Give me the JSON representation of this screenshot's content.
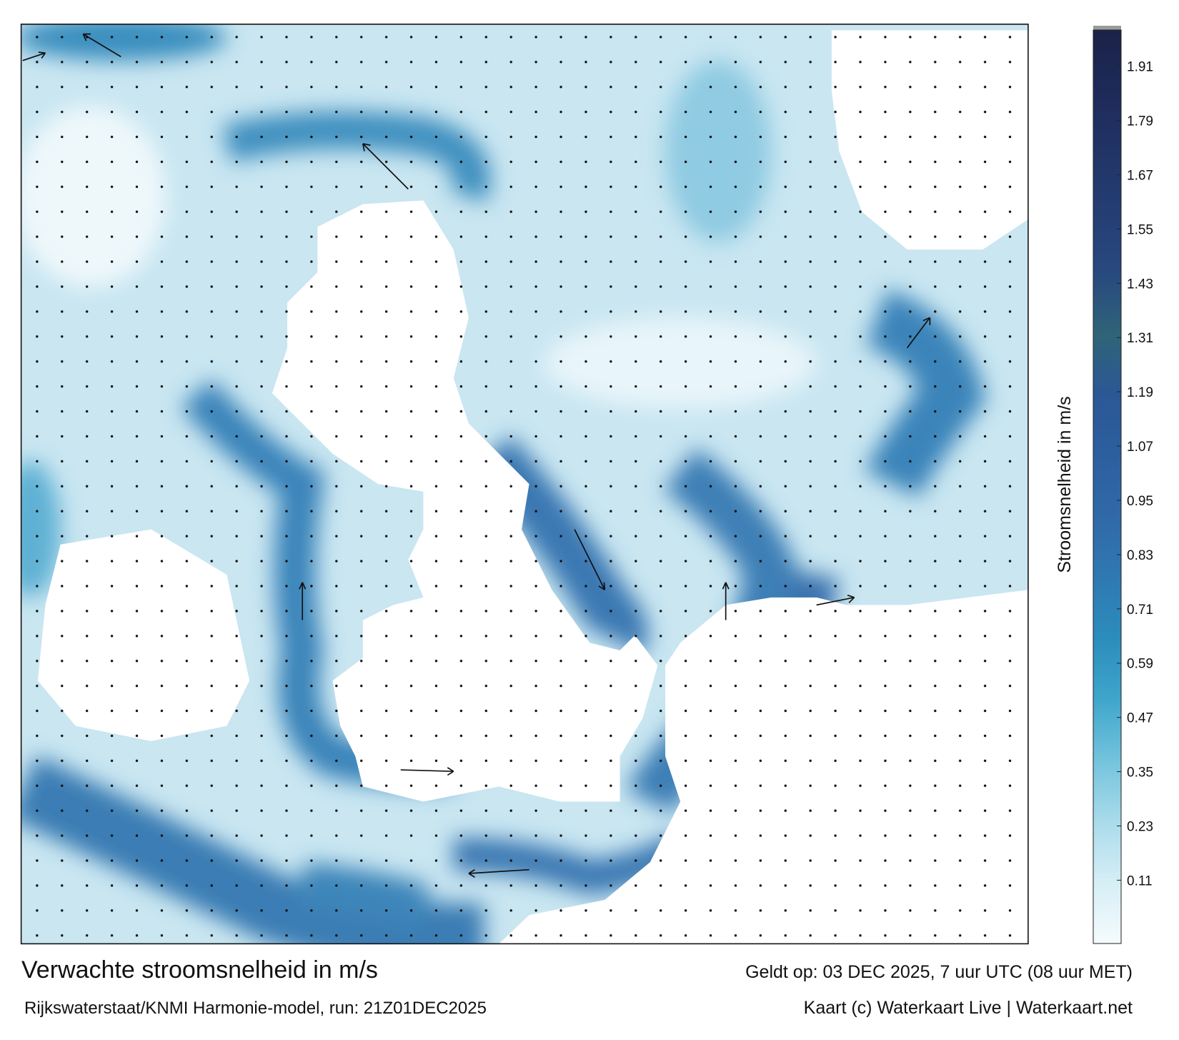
{
  "map": {
    "title": "Verwachte stroomsnelheid in m/s",
    "subtitle": "Rijkswaterstaat/KNMI Harmonie-model, run: 21Z01DEC2025",
    "valid_time": "Geldt op: 03 DEC 2025, 7 uur UTC (08 uur MET)",
    "credit": "Kaart (c) Waterkaart Live | Waterkaart.net",
    "colorbar": {
      "label": "Stroomsnelheid in m/s",
      "lim": [
        -0.03,
        1.99
      ],
      "ticks": [
        0.11,
        0.23,
        0.35,
        0.47,
        0.59,
        0.71,
        0.83,
        0.95,
        1.07,
        1.19,
        1.31,
        1.43,
        1.55,
        1.67,
        1.79,
        1.91
      ],
      "colors": [
        "#f5fbfd",
        "#d6eef6",
        "#a9dbeb",
        "#74c3dd",
        "#3fa6cb",
        "#2b8dbc",
        "#2f79b2",
        "#3069a8",
        "#2d5f9f",
        "#2b5795",
        "#2f6478",
        "#28497f",
        "#243e73",
        "#213466",
        "#1d2a59",
        "#1b2248"
      ]
    }
  }
}
